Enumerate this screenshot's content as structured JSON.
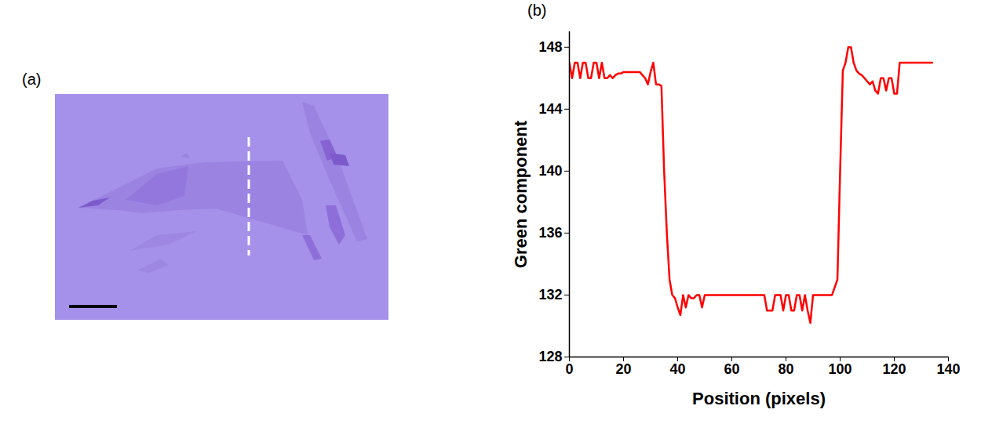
{
  "image_panel": {
    "label": "(a)"
  },
  "chart_data": {
    "type": "line",
    "panel_label": "(b)",
    "x_label": "Position (pixels)",
    "y_label": "Green component",
    "x": [
      0,
      1,
      2,
      3,
      4,
      5,
      6,
      7,
      8,
      9,
      10,
      11,
      12,
      13,
      14,
      15,
      16,
      17,
      18,
      19,
      20,
      21,
      22,
      23,
      24,
      25,
      26,
      27,
      28,
      29,
      30,
      31,
      32,
      33,
      34,
      35,
      36,
      37,
      38,
      39,
      40,
      41,
      42,
      43,
      44,
      45,
      46,
      47,
      48,
      49,
      50,
      51,
      52,
      53,
      54,
      55,
      56,
      57,
      58,
      59,
      60,
      61,
      62,
      63,
      64,
      65,
      66,
      67,
      68,
      69,
      70,
      71,
      72,
      73,
      74,
      75,
      76,
      77,
      78,
      79,
      80,
      81,
      82,
      83,
      84,
      85,
      86,
      87,
      88,
      89,
      90,
      91,
      92,
      93,
      94,
      95,
      96,
      97,
      98,
      99,
      100,
      101,
      102,
      103,
      104,
      105,
      106,
      107,
      108,
      109,
      110,
      111,
      112,
      113,
      114,
      115,
      116,
      117,
      118,
      119,
      120,
      121,
      122,
      123,
      124,
      125,
      126,
      127,
      128,
      129,
      130,
      131,
      132,
      133,
      134
    ],
    "series": [
      {
        "name": "Green component",
        "color": "#ff0000",
        "values": [
          147,
          146,
          147,
          147,
          146,
          147,
          147,
          146,
          146,
          147,
          147,
          146,
          147,
          146,
          146,
          146.2,
          146,
          146.2,
          146.3,
          146.3,
          146.4,
          146.4,
          146.4,
          146.4,
          146.4,
          146.4,
          146.4,
          146.2,
          146,
          145.6,
          146.4,
          147,
          145.6,
          145.6,
          145.5,
          140,
          136,
          133,
          132,
          131.8,
          131.2,
          130.7,
          132,
          131.2,
          132,
          131.8,
          131.8,
          132,
          132,
          131.2,
          132,
          132,
          132,
          132,
          132,
          132,
          132,
          132,
          132,
          132,
          132,
          132,
          132,
          132,
          132,
          132,
          132,
          132,
          132,
          132,
          132,
          132,
          132,
          131,
          131,
          131,
          132,
          132,
          132,
          131,
          132,
          132,
          131,
          131,
          132,
          132,
          131,
          132,
          131,
          130.2,
          132,
          132,
          132,
          132,
          132,
          132,
          132,
          132,
          132.5,
          133,
          140,
          146.5,
          147,
          148,
          148,
          147,
          146.5,
          146.3,
          146.2,
          146,
          145.8,
          145.6,
          145.8,
          145.2,
          145,
          146,
          146,
          145.2,
          146,
          146,
          145,
          145,
          147,
          147,
          147,
          147,
          147,
          147,
          147,
          147,
          147,
          147,
          147,
          147,
          147
        ]
      }
    ],
    "xlim": [
      0,
      140
    ],
    "xticks": [
      0,
      20,
      40,
      60,
      80,
      100,
      120,
      140
    ],
    "ylim": [
      128,
      149
    ],
    "yticks": [
      128,
      132,
      136,
      140,
      144,
      148
    ],
    "grid": false
  }
}
